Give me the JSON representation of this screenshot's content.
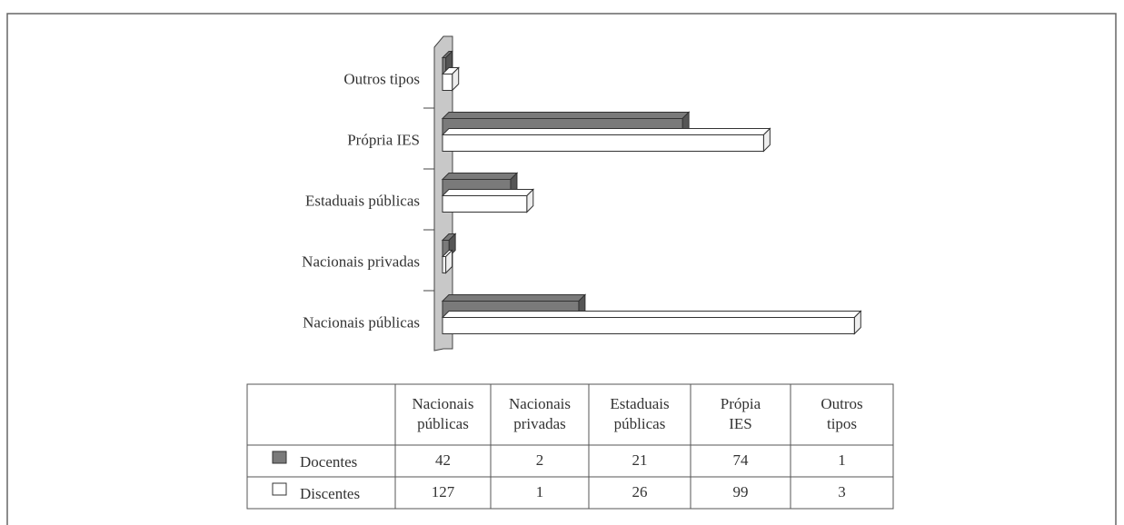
{
  "chart_data": {
    "type": "bar",
    "orientation": "horizontal",
    "categories": [
      "Nacionais públicas",
      "Nacionais privadas",
      "Estaduais públicas",
      "Própria IES",
      "Outros tipos"
    ],
    "table_categories": [
      "Nacionais públicas",
      "Nacionais privadas",
      "Estaduais públicas",
      "Própia IES",
      "Outros tipos"
    ],
    "series": [
      {
        "name": "Docentes",
        "color": "#7a7a7a",
        "values": [
          42,
          2,
          21,
          74,
          1
        ]
      },
      {
        "name": "Discentes",
        "color": "#ffffff",
        "values": [
          127,
          1,
          26,
          99,
          3
        ]
      }
    ],
    "xlim": [
      0,
      130
    ]
  }
}
